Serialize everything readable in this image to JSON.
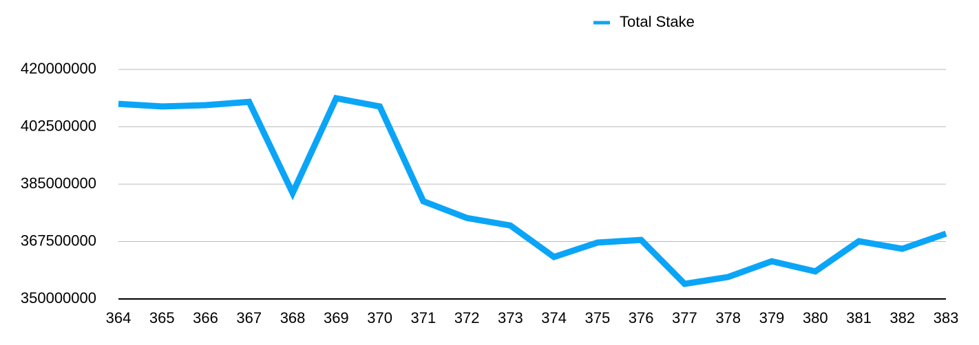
{
  "chart_data": {
    "type": "line",
    "x": [
      364,
      365,
      366,
      367,
      368,
      369,
      370,
      371,
      372,
      373,
      374,
      375,
      376,
      377,
      378,
      379,
      380,
      381,
      382,
      383
    ],
    "series": [
      {
        "name": "Total Stake",
        "color": "#0ba5f7",
        "values": [
          409500000,
          408700000,
          409100000,
          410100000,
          382300000,
          411200000,
          408700000,
          379800000,
          374700000,
          372400000,
          362800000,
          367200000,
          368000000,
          354600000,
          356700000,
          361500000,
          358400000,
          367600000,
          365300000,
          369900000
        ]
      }
    ],
    "xlim": [
      364,
      383
    ],
    "ylim": [
      350000000,
      420000000
    ],
    "yticks": [
      350000000,
      367500000,
      385000000,
      402500000,
      420000000
    ],
    "grid": true,
    "legend": "top"
  }
}
